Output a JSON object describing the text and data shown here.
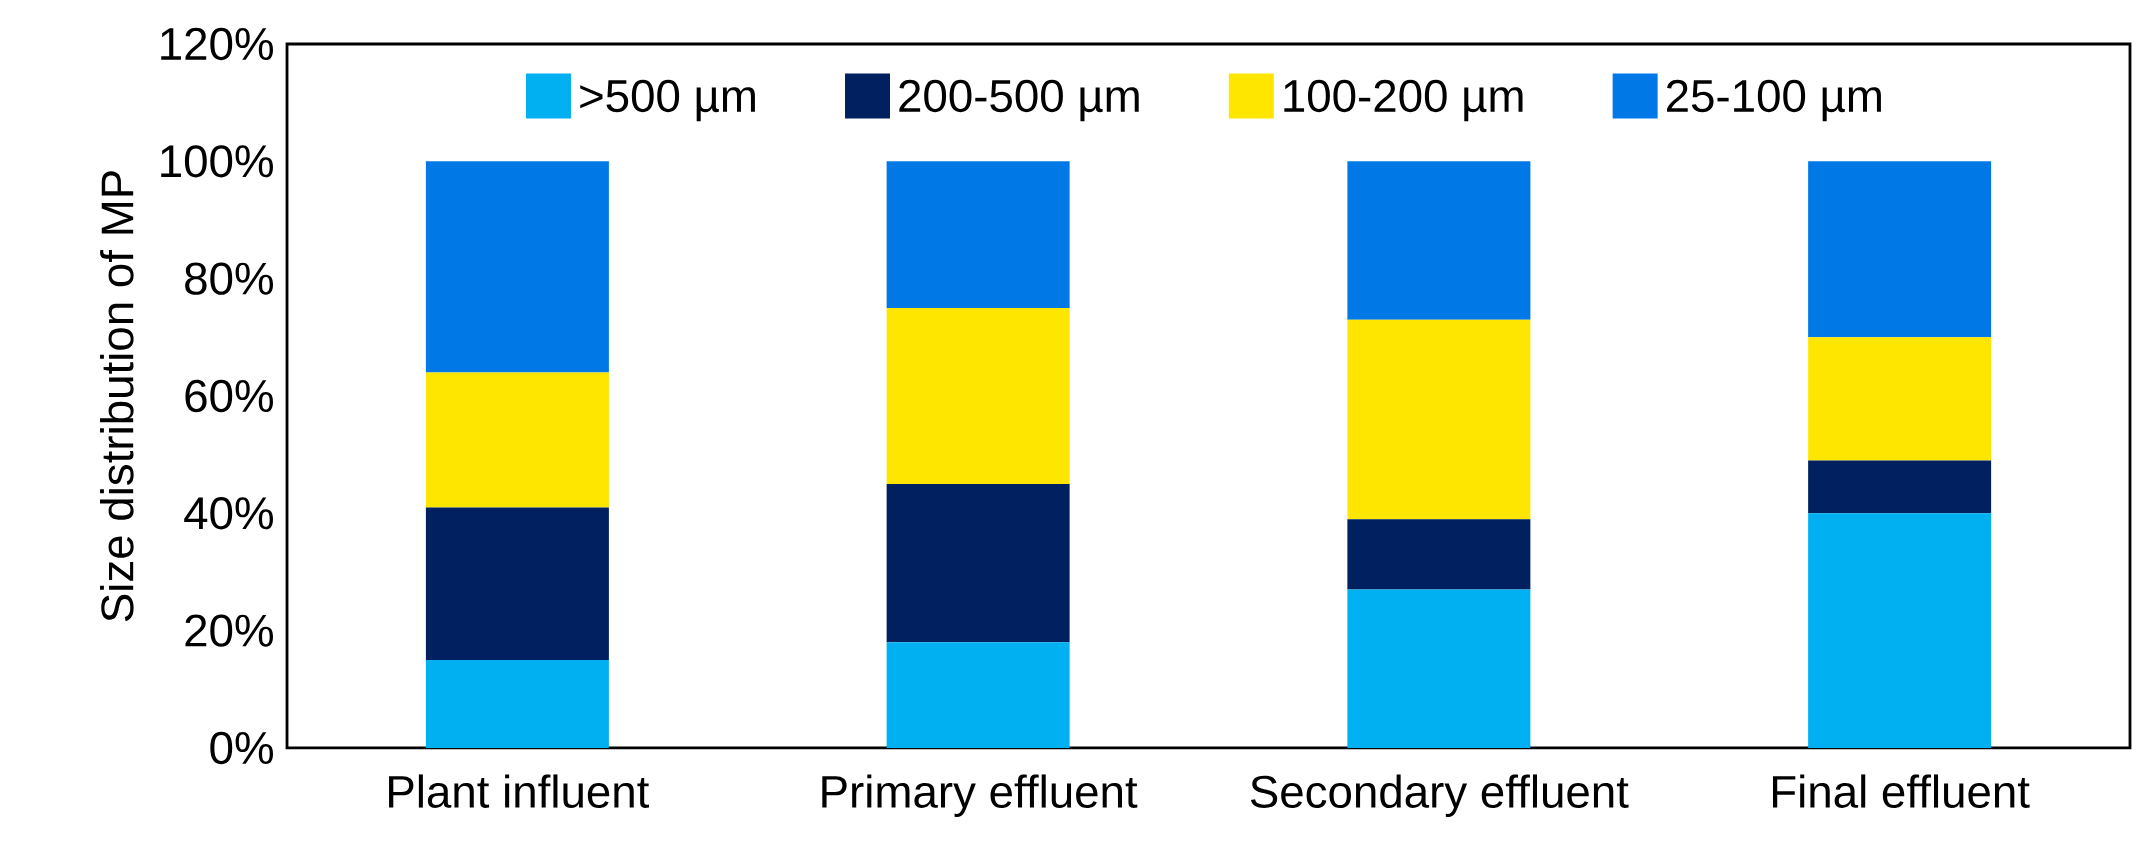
{
  "chart_data": {
    "type": "bar",
    "stacked": true,
    "ylabel": "Size distribution of MP",
    "categories": [
      "Plant influent",
      "Primary effluent",
      "Secondary effluent",
      "Final effluent"
    ],
    "series": [
      {
        "name": ">500 µm",
        "color": "#00b0f0",
        "values": [
          15,
          18,
          27,
          40
        ]
      },
      {
        "name": "200-500 µm",
        "color": "#002060",
        "values": [
          26,
          27,
          12,
          9
        ]
      },
      {
        "name": "100-200 µm",
        "color": "#ffe600",
        "values": [
          23,
          30,
          34,
          21
        ]
      },
      {
        "name": "25-100 µm",
        "color": "#0078e6",
        "values": [
          36,
          25,
          27,
          30
        ]
      }
    ],
    "ylim": [
      0,
      120
    ],
    "yticks": [
      {
        "value": 0,
        "label": "0%"
      },
      {
        "value": 20,
        "label": "20%"
      },
      {
        "value": 40,
        "label": "40%"
      },
      {
        "value": 60,
        "label": "60%"
      },
      {
        "value": 80,
        "label": "80%"
      },
      {
        "value": 100,
        "label": "100%"
      },
      {
        "value": 120,
        "label": "120%"
      }
    ],
    "legend": "top"
  }
}
